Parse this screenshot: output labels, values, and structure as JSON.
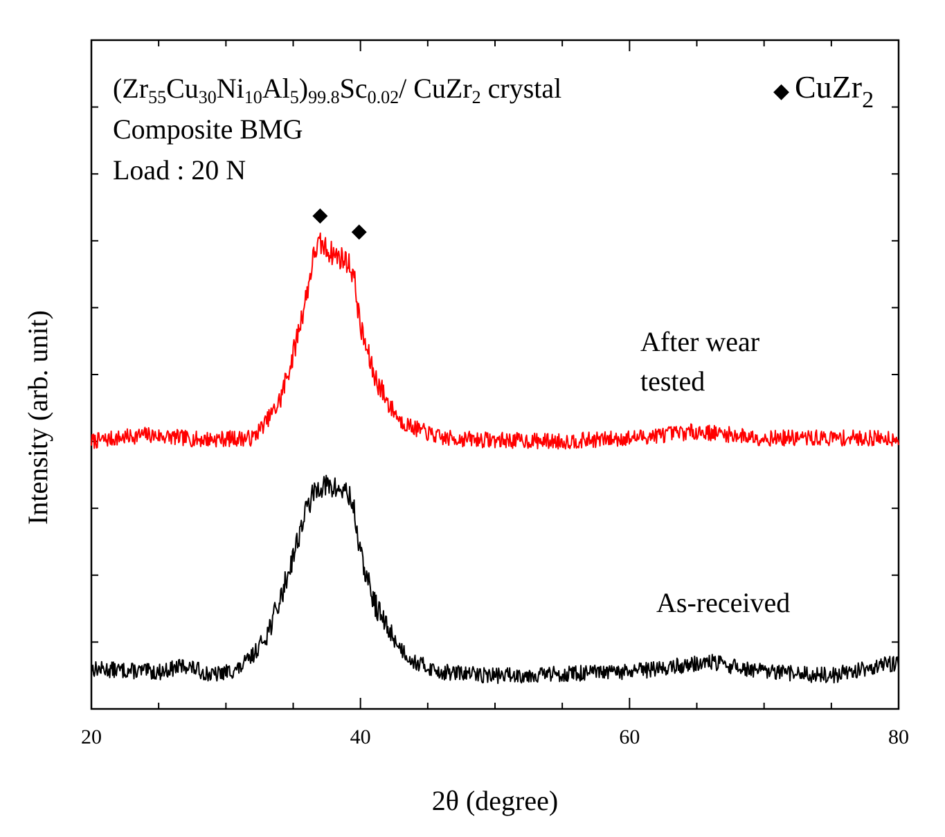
{
  "chart_data": {
    "type": "line",
    "title": "",
    "xlabel": "2θ (degree)",
    "ylabel": "Intensity (arb. unit)",
    "xlim": [
      20,
      80
    ],
    "ylim": [
      0,
      10
    ],
    "xticks": [
      20,
      40,
      60,
      80
    ],
    "xtick_labels": [
      "20",
      "40",
      "60",
      "80"
    ],
    "grid": false,
    "y_tick_labels_shown": false,
    "annotation": {
      "formula": {
        "prefix": "(Zr",
        "sub1": "55",
        "part2": "Cu",
        "sub2": "30",
        "part3": "Ni",
        "sub3": "10",
        "part4": "Al",
        "sub4": "5",
        "part5": ")",
        "sub5": "99.8",
        "part6": "Sc",
        "sub6": "0.02",
        "part7": "/ CuZr",
        "sub7": "2",
        "part8": " crystal"
      },
      "line2": "Composite BMG",
      "line3": "Load : 20 N"
    },
    "legend": {
      "symbol": "◆",
      "label": "CuZr",
      "label_sub": "2",
      "placement": "top-right"
    },
    "peak_markers": [
      {
        "x": 37.0,
        "y": 7.37,
        "label": "CuZr2"
      },
      {
        "x": 39.9,
        "y": 7.13,
        "label": "CuZr2"
      }
    ],
    "series": [
      {
        "name": "After wear tested",
        "label_lines": [
          "After wear",
          "tested"
        ],
        "color": "#ff0000",
        "baseline": 4.0,
        "noise": 0.12,
        "seed": 7,
        "profile": [
          [
            20.0,
            4.0
          ],
          [
            24.0,
            4.1
          ],
          [
            28.0,
            4.03
          ],
          [
            32.0,
            4.05
          ],
          [
            33.0,
            4.3
          ],
          [
            34.0,
            4.6
          ],
          [
            35.0,
            5.3
          ],
          [
            36.0,
            6.2
          ],
          [
            36.6,
            6.85
          ],
          [
            37.0,
            6.95
          ],
          [
            38.0,
            6.8
          ],
          [
            39.0,
            6.7
          ],
          [
            39.5,
            6.5
          ],
          [
            40.0,
            5.7
          ],
          [
            41.0,
            5.0
          ],
          [
            42.0,
            4.6
          ],
          [
            43.0,
            4.3
          ],
          [
            44.0,
            4.2
          ],
          [
            46.0,
            4.05
          ],
          [
            50.0,
            4.02
          ],
          [
            55.0,
            4.0
          ],
          [
            60.0,
            4.05
          ],
          [
            65.0,
            4.15
          ],
          [
            70.0,
            4.05
          ],
          [
            75.0,
            4.05
          ],
          [
            80.0,
            4.05
          ]
        ]
      },
      {
        "name": "As-received",
        "label_lines": [
          "As-received"
        ],
        "color": "#000000",
        "baseline": 0.6,
        "noise": 0.12,
        "seed": 13,
        "profile": [
          [
            20.0,
            0.6
          ],
          [
            25.0,
            0.55
          ],
          [
            27.0,
            0.65
          ],
          [
            29.0,
            0.5
          ],
          [
            31.0,
            0.6
          ],
          [
            32.0,
            0.8
          ],
          [
            33.0,
            1.1
          ],
          [
            34.0,
            1.6
          ],
          [
            35.0,
            2.3
          ],
          [
            36.0,
            3.0
          ],
          [
            36.5,
            3.2
          ],
          [
            37.0,
            3.35
          ],
          [
            38.0,
            3.3
          ],
          [
            39.0,
            3.25
          ],
          [
            39.5,
            3.0
          ],
          [
            40.0,
            2.3
          ],
          [
            41.0,
            1.6
          ],
          [
            42.0,
            1.2
          ],
          [
            43.0,
            0.9
          ],
          [
            44.0,
            0.7
          ],
          [
            46.0,
            0.55
          ],
          [
            50.0,
            0.5
          ],
          [
            60.0,
            0.55
          ],
          [
            66.0,
            0.7
          ],
          [
            70.0,
            0.55
          ],
          [
            75.0,
            0.5
          ],
          [
            80.0,
            0.7
          ]
        ]
      }
    ]
  }
}
